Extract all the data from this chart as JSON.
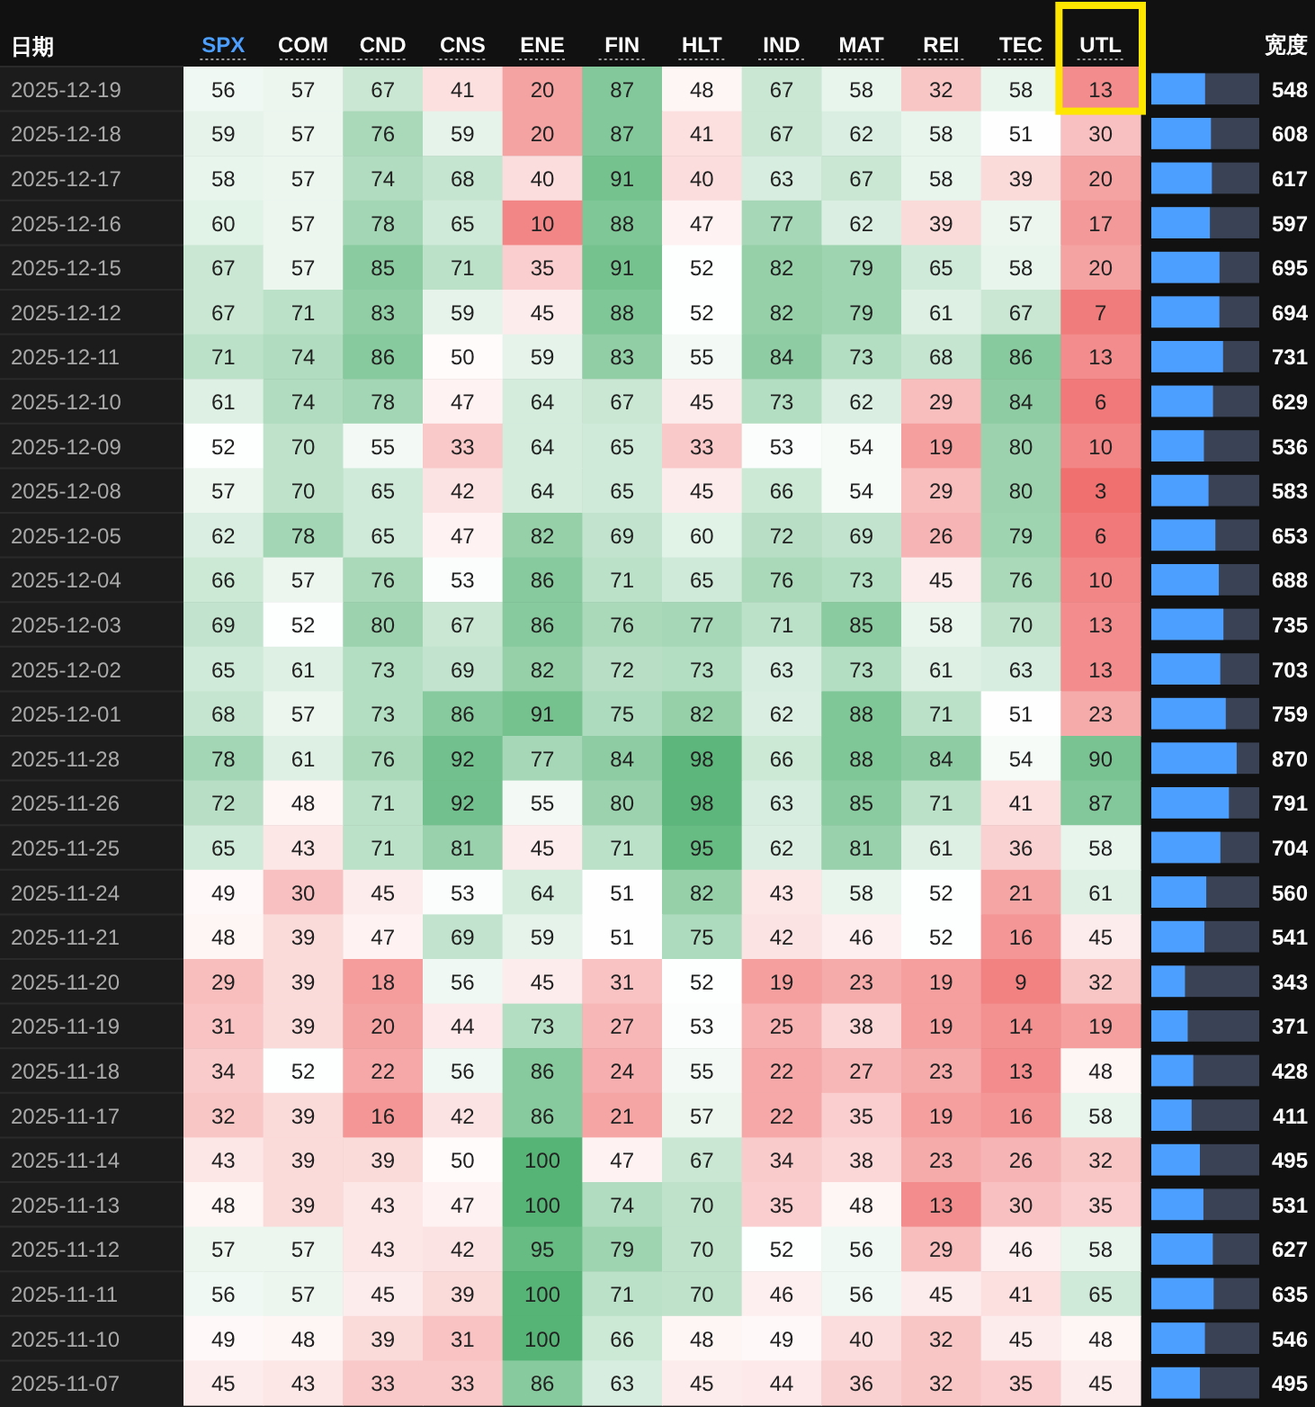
{
  "chart_data": [
    {
      "type": "heatmap",
      "ylabel": "日期",
      "categories": [
        "SPX",
        "COM",
        "CND",
        "CNS",
        "ENE",
        "FIN",
        "HLT",
        "IND",
        "MAT",
        "REI",
        "TEC",
        "UTL"
      ],
      "y_categories": [
        "2025-12-19",
        "2025-12-18",
        "2025-12-17",
        "2025-12-16",
        "2025-12-15",
        "2025-12-12",
        "2025-12-11",
        "2025-12-10",
        "2025-12-09",
        "2025-12-08",
        "2025-12-05",
        "2025-12-04",
        "2025-12-03",
        "2025-12-02",
        "2025-12-01",
        "2025-11-28",
        "2025-11-26",
        "2025-11-25",
        "2025-11-24",
        "2025-11-21",
        "2025-11-20",
        "2025-11-19",
        "2025-11-18",
        "2025-11-17",
        "2025-11-14",
        "2025-11-13",
        "2025-11-12",
        "2025-11-11",
        "2025-11-10",
        "2025-11-07"
      ],
      "cells": [
        [
          56,
          57,
          67,
          41,
          20,
          87,
          48,
          67,
          58,
          32,
          58,
          13
        ],
        [
          59,
          57,
          76,
          59,
          20,
          87,
          41,
          67,
          62,
          58,
          51,
          30
        ],
        [
          58,
          57,
          74,
          68,
          40,
          91,
          40,
          63,
          67,
          58,
          39,
          20
        ],
        [
          60,
          57,
          78,
          65,
          10,
          88,
          47,
          77,
          62,
          39,
          57,
          17
        ],
        [
          67,
          57,
          85,
          71,
          35,
          91,
          52,
          82,
          79,
          65,
          58,
          20
        ],
        [
          67,
          71,
          83,
          59,
          45,
          88,
          52,
          82,
          79,
          61,
          67,
          7
        ],
        [
          71,
          74,
          86,
          50,
          59,
          83,
          55,
          84,
          73,
          68,
          86,
          13
        ],
        [
          61,
          74,
          78,
          47,
          64,
          67,
          45,
          73,
          62,
          29,
          84,
          6
        ],
        [
          52,
          70,
          55,
          33,
          64,
          65,
          33,
          53,
          54,
          19,
          80,
          10
        ],
        [
          57,
          70,
          65,
          42,
          64,
          65,
          45,
          66,
          54,
          29,
          80,
          3
        ],
        [
          62,
          78,
          65,
          47,
          82,
          69,
          60,
          72,
          69,
          26,
          79,
          6
        ],
        [
          66,
          57,
          76,
          53,
          86,
          71,
          65,
          76,
          73,
          45,
          76,
          10
        ],
        [
          69,
          52,
          80,
          67,
          86,
          76,
          77,
          71,
          85,
          58,
          70,
          13
        ],
        [
          65,
          61,
          73,
          69,
          82,
          72,
          73,
          63,
          73,
          61,
          63,
          13
        ],
        [
          68,
          57,
          73,
          86,
          91,
          75,
          82,
          62,
          88,
          71,
          51,
          23
        ],
        [
          78,
          61,
          76,
          92,
          77,
          84,
          98,
          66,
          88,
          84,
          54,
          90
        ],
        [
          72,
          48,
          71,
          92,
          55,
          80,
          98,
          63,
          85,
          71,
          41,
          87
        ],
        [
          65,
          43,
          71,
          81,
          45,
          71,
          95,
          62,
          81,
          61,
          36,
          58
        ],
        [
          49,
          30,
          45,
          53,
          64,
          51,
          82,
          43,
          58,
          52,
          21,
          61
        ],
        [
          48,
          39,
          47,
          69,
          59,
          51,
          75,
          42,
          46,
          52,
          16,
          45
        ],
        [
          29,
          39,
          18,
          56,
          45,
          31,
          52,
          19,
          23,
          19,
          9,
          32
        ],
        [
          31,
          39,
          20,
          44,
          73,
          27,
          53,
          25,
          38,
          19,
          14,
          19
        ],
        [
          34,
          52,
          22,
          56,
          86,
          24,
          55,
          22,
          27,
          23,
          13,
          48
        ],
        [
          32,
          39,
          16,
          42,
          86,
          21,
          57,
          22,
          35,
          19,
          16,
          58
        ],
        [
          43,
          39,
          39,
          50,
          100,
          47,
          67,
          34,
          38,
          23,
          26,
          32
        ],
        [
          48,
          39,
          43,
          47,
          100,
          74,
          70,
          35,
          48,
          13,
          30,
          35
        ],
        [
          57,
          57,
          43,
          42,
          95,
          79,
          70,
          52,
          56,
          29,
          46,
          58
        ],
        [
          56,
          57,
          45,
          39,
          100,
          71,
          70,
          46,
          56,
          45,
          41,
          65
        ],
        [
          49,
          48,
          39,
          31,
          100,
          66,
          48,
          49,
          40,
          32,
          45,
          48
        ],
        [
          45,
          43,
          33,
          33,
          86,
          63,
          45,
          44,
          36,
          32,
          35,
          45
        ]
      ],
      "data_labels": true
    },
    {
      "type": "bar",
      "orientation": "horizontal",
      "title": "宽度",
      "color": "#4d9fff",
      "data_labels": true,
      "xlim": [
        0,
        1100
      ],
      "categories": [
        null,
        null,
        null,
        null,
        null,
        null,
        null,
        null,
        null,
        null,
        null,
        null,
        null,
        null,
        null,
        null,
        null,
        null,
        null,
        null,
        null,
        null,
        null,
        null,
        null,
        null,
        null,
        null,
        null,
        null
      ],
      "values": [
        548,
        608,
        617,
        597,
        695,
        694,
        731,
        629,
        536,
        583,
        653,
        688,
        735,
        703,
        759,
        870,
        791,
        704,
        560,
        541,
        343,
        371,
        428,
        411,
        495,
        531,
        627,
        635,
        546,
        495
      ]
    }
  ]
}
